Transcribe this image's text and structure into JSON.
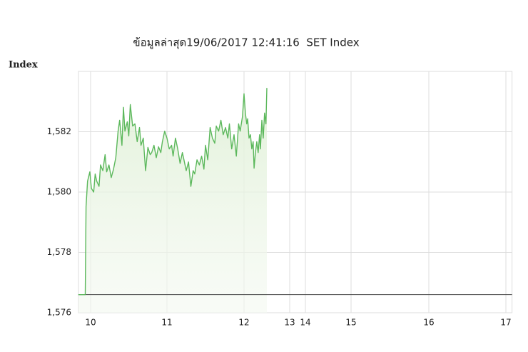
{
  "chart_data": {
    "type": "line",
    "title": "ข้อมูลล่าสุด19/06/2017 12:41:16  SET Index",
    "y_label": "Index",
    "color": "#5cb85c",
    "grid": true,
    "xlim": [
      9.84,
      17.08
    ],
    "xticks": [
      10,
      11,
      12,
      13,
      14,
      15,
      16,
      17
    ],
    "ylim": [
      1576,
      1584
    ],
    "yticks": [
      {
        "value": 1576,
        "label": "1,576"
      },
      {
        "value": 1578,
        "label": "1,578"
      },
      {
        "value": 1580,
        "label": "1,580"
      },
      {
        "value": 1582,
        "label": "1,582"
      }
    ],
    "reference_line": 1576.6,
    "x": [
      9.84,
      9.93,
      9.94,
      9.96,
      9.99,
      10.01,
      10.04,
      10.06,
      10.08,
      10.11,
      10.13,
      10.16,
      10.19,
      10.21,
      10.24,
      10.27,
      10.3,
      10.33,
      10.36,
      10.38,
      10.41,
      10.43,
      10.45,
      10.48,
      10.5,
      10.52,
      10.55,
      10.58,
      10.61,
      10.64,
      10.66,
      10.69,
      10.72,
      10.75,
      10.78,
      10.8,
      10.83,
      10.86,
      10.89,
      10.92,
      10.94,
      10.97,
      11.0,
      11.03,
      11.06,
      11.08,
      11.11,
      11.14,
      11.17,
      11.2,
      11.22,
      11.25,
      11.28,
      11.31,
      11.34,
      11.36,
      11.39,
      11.42,
      11.45,
      11.48,
      11.5,
      11.53,
      11.56,
      11.59,
      11.62,
      11.64,
      11.67,
      11.7,
      11.73,
      11.76,
      11.79,
      11.81,
      11.84,
      11.87,
      11.9,
      11.93,
      11.95,
      11.98,
      12.0,
      12.03,
      12.06,
      12.08,
      12.11,
      12.14,
      12.17,
      12.2,
      12.22,
      12.25,
      12.28,
      12.31,
      12.34,
      12.36,
      12.39,
      12.42,
      12.45,
      12.48,
      12.5
    ],
    "values": [
      1576.6,
      1576.6,
      1579.52,
      1580.36,
      1580.67,
      1580.12,
      1580.0,
      1580.6,
      1580.36,
      1580.19,
      1580.9,
      1580.71,
      1581.24,
      1580.67,
      1580.9,
      1580.48,
      1580.76,
      1581.14,
      1582.02,
      1582.38,
      1581.55,
      1582.81,
      1582.02,
      1582.33,
      1581.86,
      1582.9,
      1582.19,
      1582.26,
      1581.67,
      1582.14,
      1581.55,
      1581.79,
      1580.71,
      1581.48,
      1581.24,
      1581.31,
      1581.55,
      1581.14,
      1581.5,
      1581.31,
      1581.67,
      1582.02,
      1581.79,
      1581.43,
      1581.55,
      1581.19,
      1581.79,
      1581.43,
      1580.95,
      1581.31,
      1581.07,
      1580.71,
      1581.0,
      1580.19,
      1580.71,
      1580.6,
      1581.07,
      1580.9,
      1581.19,
      1580.76,
      1581.55,
      1581.07,
      1582.14,
      1581.79,
      1581.62,
      1582.19,
      1582.02,
      1582.38,
      1581.9,
      1582.14,
      1581.79,
      1582.26,
      1581.43,
      1581.9,
      1581.19,
      1582.26,
      1582.02,
      1582.5,
      1583.26,
      1582.62,
      1582.26,
      1582.43,
      1581.79,
      1581.9,
      1581.43,
      1581.67,
      1580.79,
      1581.31,
      1581.67,
      1581.31,
      1581.9,
      1581.43,
      1582.38,
      1581.79,
      1582.62,
      1582.26,
      1583.45
    ]
  }
}
